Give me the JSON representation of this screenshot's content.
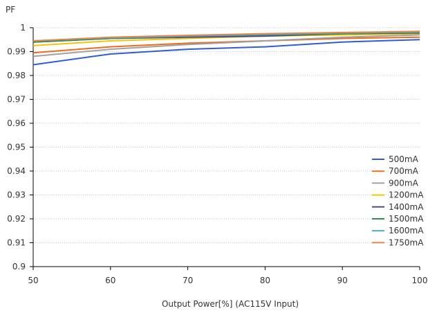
{
  "chart_data": {
    "type": "line",
    "title": "",
    "ylabel": "PF",
    "xlabel": "Output Power[%] (AC115V Input)",
    "x": [
      50,
      60,
      70,
      80,
      90,
      100
    ],
    "xticks": [
      "50",
      "60",
      "70",
      "80",
      "90",
      "100"
    ],
    "yticks": [
      "0.9",
      "0.91",
      "0.92",
      "0.93",
      "0.94",
      "0.95",
      "0.96",
      "0.97",
      "0.98",
      "0.99",
      "1"
    ],
    "xlim": [
      50,
      100
    ],
    "ylim": [
      0.9,
      1.0
    ],
    "grid": "horizontal dotted",
    "legend_position": "bottom-right",
    "series": [
      {
        "name": "500mA",
        "color": "#2f5ccf",
        "values": [
          0.9845,
          0.989,
          0.991,
          0.992,
          0.994,
          0.995
        ]
      },
      {
        "name": "700mA",
        "color": "#f06a1c",
        "values": [
          0.9895,
          0.992,
          0.9935,
          0.9945,
          0.9955,
          0.996
        ]
      },
      {
        "name": "900mA",
        "color": "#a0a0a0",
        "values": [
          0.988,
          0.991,
          0.993,
          0.9945,
          0.996,
          0.997
        ]
      },
      {
        "name": "1200mA",
        "color": "#f5c400",
        "values": [
          0.9925,
          0.9945,
          0.9955,
          0.9965,
          0.997,
          0.9975
        ]
      },
      {
        "name": "1400mA",
        "color": "#4f4a86",
        "values": [
          0.994,
          0.9955,
          0.996,
          0.9965,
          0.9975,
          0.9978
        ]
      },
      {
        "name": "1500mA",
        "color": "#2e8b57",
        "values": [
          0.994,
          0.9955,
          0.9965,
          0.997,
          0.9975,
          0.998
        ]
      },
      {
        "name": "1600mA",
        "color": "#4aa8c8",
        "values": [
          0.9945,
          0.9958,
          0.9965,
          0.9972,
          0.9978,
          0.9982
        ]
      },
      {
        "name": "1750mA",
        "color": "#e9844a",
        "values": [
          0.9945,
          0.996,
          0.9968,
          0.9975,
          0.998,
          0.9985
        ]
      }
    ]
  }
}
